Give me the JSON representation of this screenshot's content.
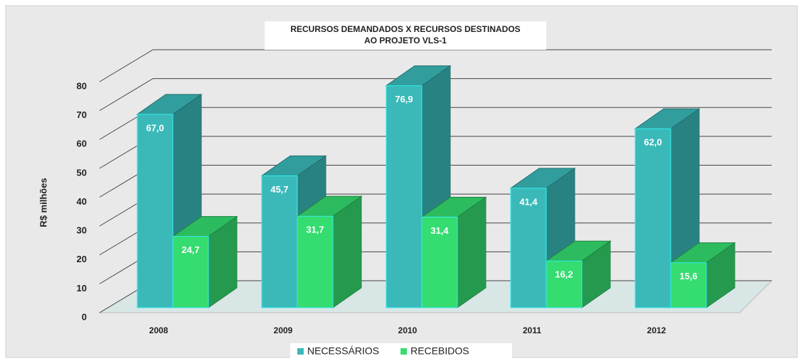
{
  "chart_data": {
    "type": "bar3d",
    "title": [
      "RECURSOS DEMANDADOS X RECURSOS DESTINADOS",
      "AO PROJETO VLS-1"
    ],
    "ylabel": "R$ milhões",
    "categories": [
      "2008",
      "2009",
      "2010",
      "2011",
      "2012"
    ],
    "series": [
      {
        "name": "NECESSÁRIOS",
        "color": "#3bb9b9",
        "values": [
          67.0,
          45.7,
          76.9,
          41.4,
          62.0
        ],
        "value_labels": [
          "67,0",
          "45,7",
          "76,9",
          "41,4",
          "62,0"
        ]
      },
      {
        "name": "RECEBIDOS",
        "color": "#35dc70",
        "values": [
          24.7,
          31.7,
          31.4,
          16.2,
          15.6
        ],
        "value_labels": [
          "24,7",
          "31,7",
          "31,4",
          "16,2",
          "15,6"
        ]
      }
    ],
    "ylim": [
      0,
      80
    ],
    "yticks": [
      0,
      10,
      20,
      30,
      40,
      50,
      60,
      70,
      80
    ],
    "grid": true,
    "legend": "bottom"
  }
}
